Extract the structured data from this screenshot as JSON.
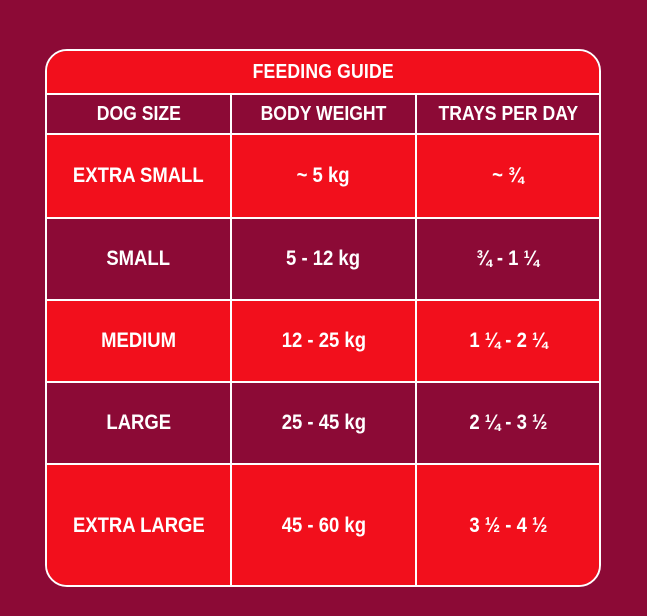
{
  "title": "FEEDING GUIDE",
  "headers": {
    "dog_size": "DOG SIZE",
    "body_weight": "BODY WEIGHT",
    "trays_per_day": "TRAYS PER DAY"
  },
  "rows": [
    {
      "dog_size": "EXTRA SMALL",
      "body_weight": "~ 5 kg",
      "trays_per_day": "~ ¾"
    },
    {
      "dog_size": "SMALL",
      "body_weight": "5 - 12 kg",
      "trays_per_day": "¾ - 1 ¼"
    },
    {
      "dog_size": "MEDIUM",
      "body_weight": "12 - 25 kg",
      "trays_per_day": "1 ¼ - 2 ¼"
    },
    {
      "dog_size": "LARGE",
      "body_weight": "25 - 45 kg",
      "trays_per_day": "2 ¼ - 3 ½"
    },
    {
      "dog_size": "EXTRA LARGE",
      "body_weight": "45 - 60 kg",
      "trays_per_day": "3 ½ - 4 ½"
    }
  ],
  "colors": {
    "background": "#8c0a36",
    "accent_red": "#f20f1c",
    "text": "#ffffff"
  }
}
